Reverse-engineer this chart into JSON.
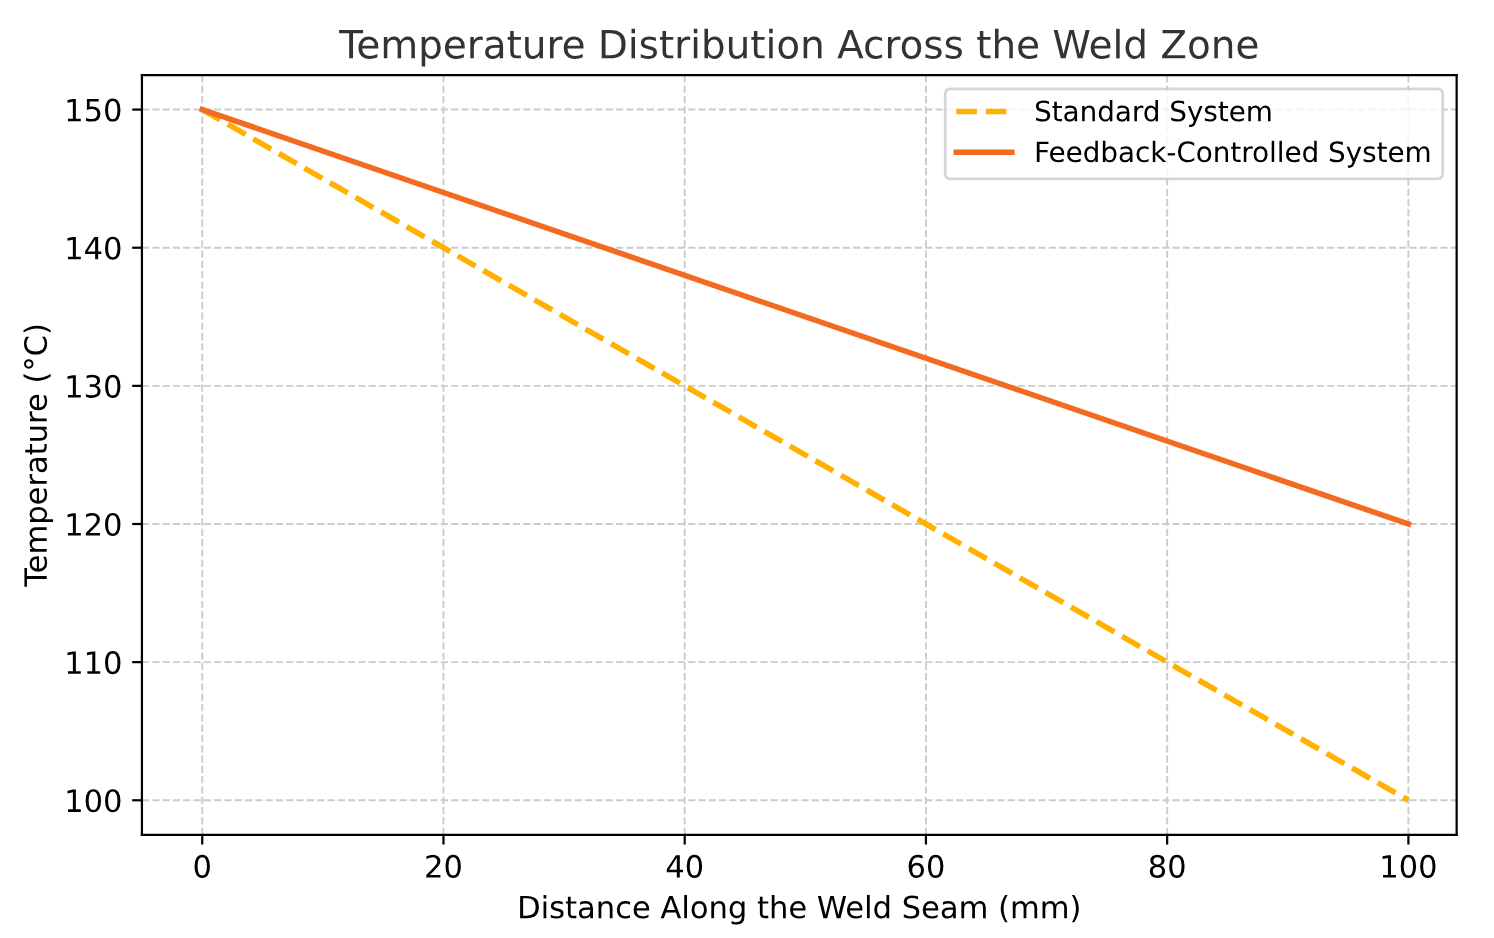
{
  "chart_data": {
    "type": "line",
    "title": "Temperature Distribution Across the Weld Zone",
    "xlabel": "Distance Along the Weld Seam (mm)",
    "ylabel": "Temperature (°C)",
    "x": [
      0,
      100
    ],
    "series": [
      {
        "name": "Standard System",
        "color": "#ffb000",
        "values": [
          150,
          100
        ],
        "line_style": "dashed"
      },
      {
        "name": "Feedback-Controlled System",
        "color": "#f26b21",
        "values": [
          150,
          120
        ],
        "line_style": "solid"
      }
    ],
    "xlim": [
      -5,
      104
    ],
    "ylim": [
      97.5,
      152.5
    ],
    "xticks": [
      0,
      20,
      40,
      60,
      80,
      100
    ],
    "yticks": [
      100,
      110,
      120,
      130,
      140,
      150
    ],
    "grid": true,
    "legend": "top right",
    "marker": "none"
  }
}
